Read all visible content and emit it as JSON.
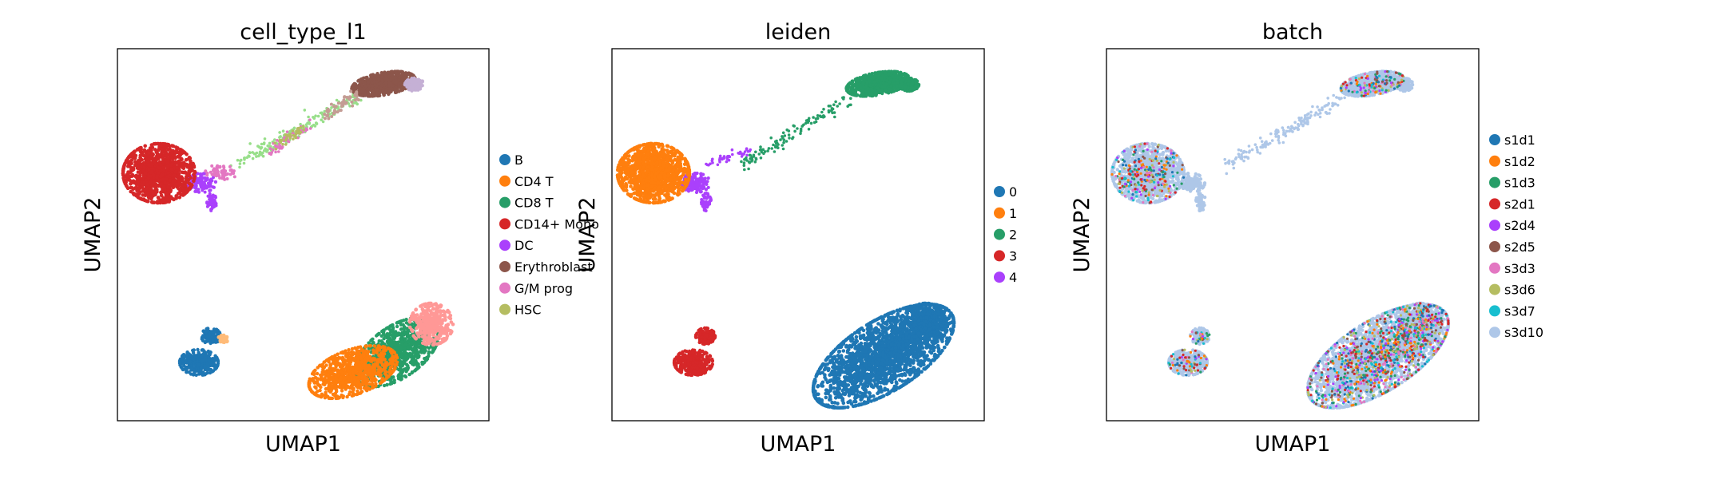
{
  "chart_data": [
    {
      "type": "scatter",
      "title": "cell_type_l1",
      "xlabel": "UMAP1",
      "ylabel": "UMAP2",
      "grid": false,
      "legend_placement": "right",
      "series": [
        {
          "name": "B",
          "color": "#1f77b4"
        },
        {
          "name": "CD4 T",
          "color": "#ff7f0e"
        },
        {
          "name": "CD8 T",
          "color": "#279e68"
        },
        {
          "name": "CD14+ Mono",
          "color": "#d62728"
        },
        {
          "name": "DC",
          "color": "#aa40fc"
        },
        {
          "name": "Erythroblast",
          "color": "#8c564b"
        },
        {
          "name": "G/M prog",
          "color": "#e377c2"
        },
        {
          "name": "HSC",
          "color": "#b5bd61"
        }
      ],
      "extra_colors": [
        "#ffbb78",
        "#ff9896",
        "#98df8a",
        "#c5b0d5",
        "#c49c94"
      ]
    },
    {
      "type": "scatter",
      "title": "leiden",
      "xlabel": "UMAP1",
      "ylabel": "UMAP2",
      "grid": false,
      "legend_placement": "right",
      "series": [
        {
          "name": "0",
          "color": "#1f77b4"
        },
        {
          "name": "1",
          "color": "#ff7f0e"
        },
        {
          "name": "2",
          "color": "#279e68"
        },
        {
          "name": "3",
          "color": "#d62728"
        },
        {
          "name": "4",
          "color": "#aa40fc"
        }
      ]
    },
    {
      "type": "scatter",
      "title": "batch",
      "xlabel": "UMAP1",
      "ylabel": "UMAP2",
      "grid": false,
      "legend_placement": "right",
      "series": [
        {
          "name": "s1d1",
          "color": "#1f77b4"
        },
        {
          "name": "s1d2",
          "color": "#ff7f0e"
        },
        {
          "name": "s1d3",
          "color": "#279e68"
        },
        {
          "name": "s2d1",
          "color": "#d62728"
        },
        {
          "name": "s2d4",
          "color": "#aa40fc"
        },
        {
          "name": "s2d5",
          "color": "#8c564b"
        },
        {
          "name": "s3d3",
          "color": "#e377c2"
        },
        {
          "name": "s3d6",
          "color": "#b5bd61"
        },
        {
          "name": "s3d7",
          "color": "#17becf"
        },
        {
          "name": "s3d10",
          "color": "#aec7e8"
        }
      ]
    }
  ]
}
